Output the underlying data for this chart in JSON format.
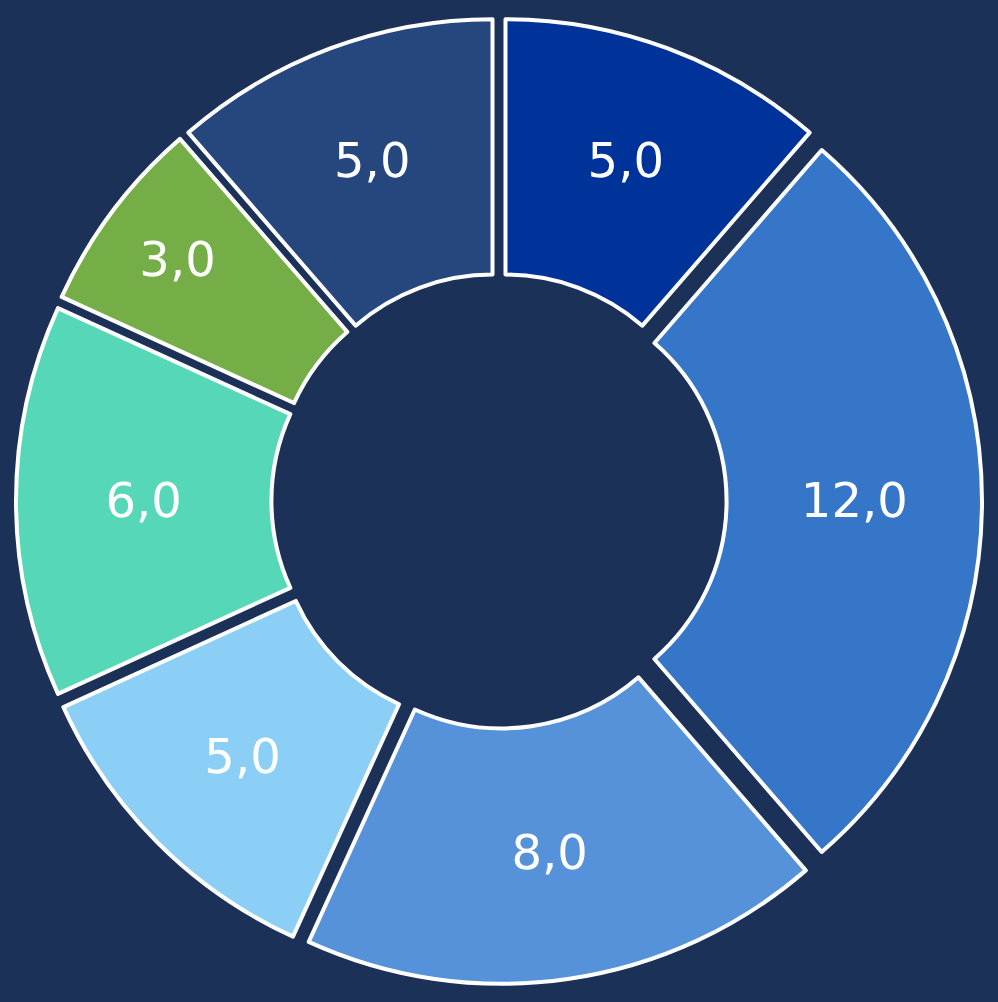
{
  "chart_data": {
    "type": "donut",
    "categories": [
      null,
      null,
      null,
      null,
      null,
      null,
      null
    ],
    "values": [
      5,
      12,
      8,
      5,
      6,
      3,
      5
    ],
    "colors": [
      "#00339a",
      "#3676c8",
      "#5592d9",
      "#8bcff7",
      "#56d8b8",
      "#75ad46",
      "#26477e"
    ],
    "value_labels": [
      "5,0",
      "12,0",
      "8,0",
      "5,0",
      "6,0",
      "3,0",
      "5,0"
    ],
    "legend": false
  }
}
